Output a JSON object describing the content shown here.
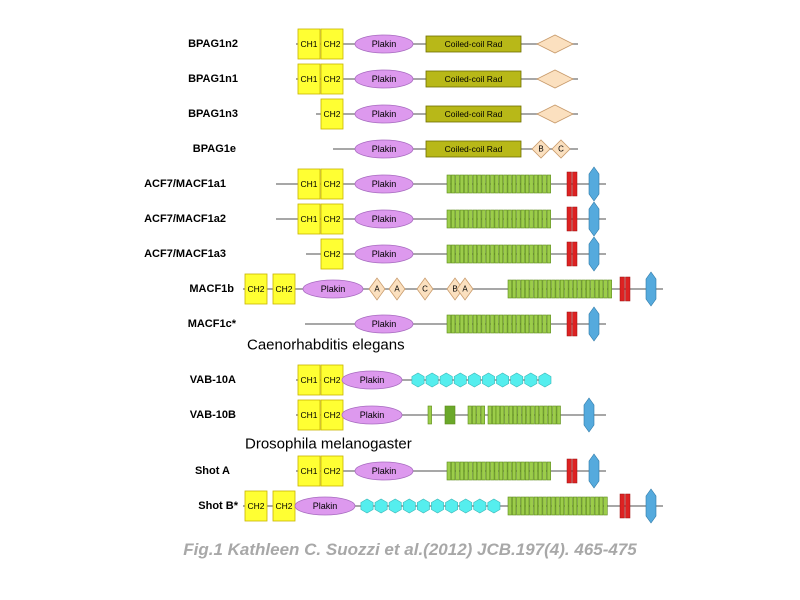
{
  "colors": {
    "ch": "#ffff33",
    "ch_stroke": "#c8b400",
    "plakin": "#dd99ee",
    "plakin_stroke": "#a86cc0",
    "coiled": "#b8b818",
    "coiled_stroke": "#6f6f00",
    "diamond": "#fbe0bf",
    "diamond_stroke": "#c89a6a",
    "spectrin": "#9ccd4a",
    "spectrin_stroke": "#5d8a1a",
    "gar": "#dd2222",
    "grr": "#55aadd",
    "hex": "#55eeee",
    "line": "#8a8a8a",
    "caption": "#a8a8a8"
  },
  "labels": {
    "ch1": "CH1",
    "ch2": "CH2",
    "plakin": "Plakin",
    "coiled": "Coiled-coil Rad",
    "A": "A",
    "B": "B",
    "C": "C"
  },
  "groups": [
    "Caenorhabditis elegans",
    "Drosophila melanogaster"
  ],
  "caption": "Fig.1 Kathleen C. Suozzi et al.(2012) JCB.197(4). 465-475",
  "proteins": [
    {
      "name": "BPAG1n2",
      "domains": [
        "CH1",
        "CH2",
        "Plakin",
        "Coiled-coil Rad",
        "diamond"
      ]
    },
    {
      "name": "BPAG1n1",
      "domains": [
        "CH1",
        "CH2",
        "Plakin",
        "Coiled-coil Rad",
        "diamond"
      ]
    },
    {
      "name": "BPAG1n3",
      "domains": [
        "CH2",
        "Plakin",
        "Coiled-coil Rad",
        "diamond"
      ]
    },
    {
      "name": "BPAG1e",
      "domains": [
        "Plakin",
        "Coiled-coil Rad",
        "B",
        "C"
      ]
    },
    {
      "name": "ACF7/MACF1a1",
      "domains": [
        "CH1",
        "CH2",
        "Plakin",
        "spectrin repeats",
        "GAR",
        "GRR"
      ]
    },
    {
      "name": "ACF7/MACF1a2",
      "domains": [
        "CH1",
        "CH2",
        "Plakin",
        "spectrin repeats",
        "GAR",
        "GRR"
      ]
    },
    {
      "name": "ACF7/MACF1a3",
      "domains": [
        "CH2",
        "Plakin",
        "spectrin repeats",
        "GAR",
        "GRR"
      ]
    },
    {
      "name": "MACF1b",
      "domains": [
        "CH2",
        "CH2",
        "Plakin",
        "A",
        "A",
        "C",
        "B",
        "A",
        "spectrin repeats",
        "GAR",
        "GRR"
      ]
    },
    {
      "name": "MACF1c*",
      "domains": [
        "Plakin",
        "spectrin repeats",
        "GAR",
        "GRR"
      ]
    },
    {
      "name": "VAB-10A",
      "domains": [
        "CH1",
        "CH2",
        "Plakin",
        "plakin repeats"
      ]
    },
    {
      "name": "VAB-10B",
      "domains": [
        "CH1",
        "CH2",
        "Plakin",
        "spectrin repeats",
        "GRR"
      ]
    },
    {
      "name": "Shot A",
      "domains": [
        "CH1",
        "CH2",
        "Plakin",
        "spectrin repeats",
        "GAR",
        "GRR"
      ]
    },
    {
      "name": "Shot B*",
      "domains": [
        "CH2",
        "CH2",
        "Plakin",
        "plakin repeats",
        "spectrin repeats",
        "GAR",
        "GRR"
      ]
    }
  ]
}
